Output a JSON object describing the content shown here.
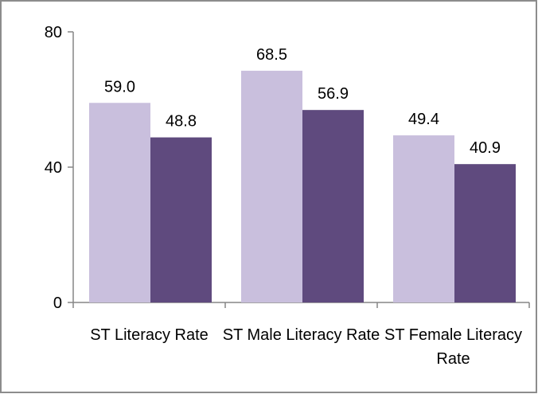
{
  "chart_data": {
    "type": "bar",
    "categories": [
      "ST Literacy Rate",
      "ST Male Literacy Rate",
      "ST Female Literacy Rate"
    ],
    "series": [
      {
        "color": "#c9bfdd",
        "values": [
          59.0,
          68.5,
          49.4
        ],
        "value_labels": [
          "59.0",
          "68.5",
          "49.4"
        ]
      },
      {
        "color": "#5f4a7e",
        "values": [
          48.8,
          56.9,
          40.9
        ],
        "value_labels": [
          "48.8",
          "56.9",
          "40.9"
        ]
      }
    ],
    "ylim": [
      0,
      80
    ],
    "yticks": [
      0,
      40,
      80
    ],
    "grid": false
  }
}
